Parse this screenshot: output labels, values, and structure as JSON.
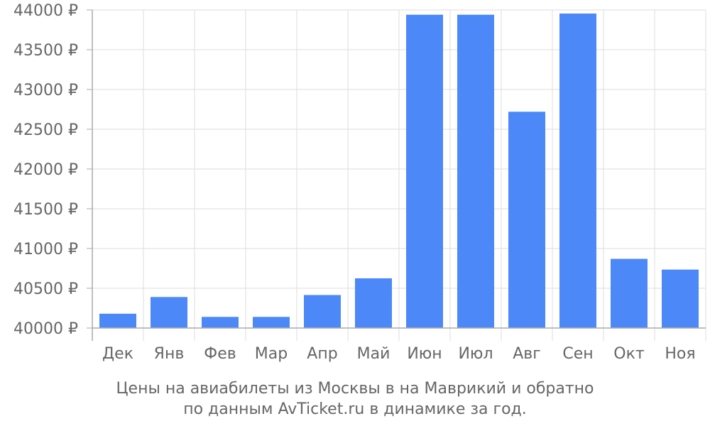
{
  "chart_data": {
    "type": "bar",
    "categories": [
      "Дек",
      "Янв",
      "Фев",
      "Мар",
      "Апр",
      "Май",
      "Июн",
      "Июл",
      "Авг",
      "Сен",
      "Окт",
      "Ноя"
    ],
    "values": [
      40180,
      40390,
      40140,
      40140,
      40415,
      40625,
      43940,
      43940,
      42720,
      43955,
      40870,
      40735
    ],
    "yticks": [
      40000,
      40500,
      41000,
      41500,
      42000,
      42500,
      43000,
      43500,
      44000
    ],
    "ytick_suffix": " ₽",
    "ylim": [
      40000,
      44000
    ],
    "grid": true,
    "bar_color": "#4d88f9",
    "grid_color": "#dddddd",
    "axis_color": "#aaaaaa",
    "text_color": "#666666"
  },
  "caption": {
    "line1": "Цены на авиабилеты из Москвы в на Маврикий и обратно",
    "line2": "по данным AvTicket.ru в динамике за год."
  }
}
